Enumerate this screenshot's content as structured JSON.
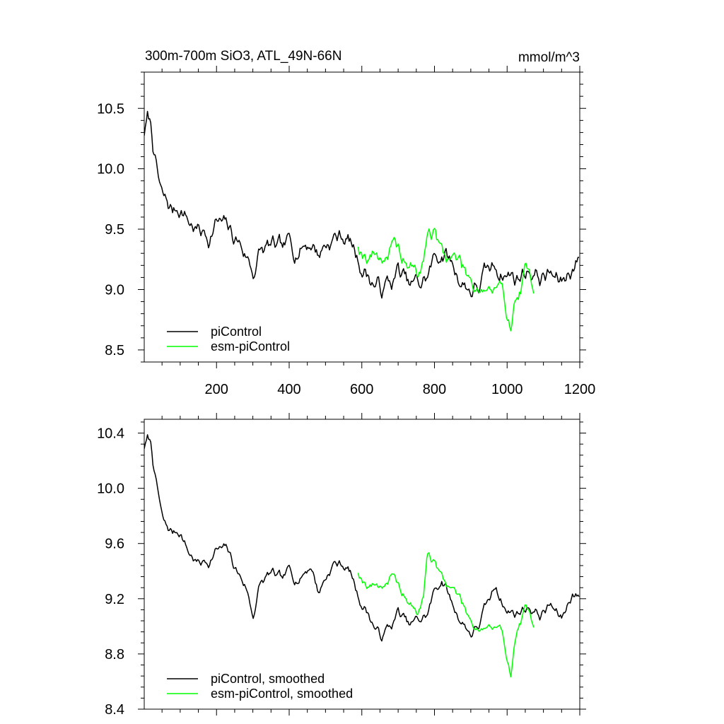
{
  "chart_data": [
    {
      "type": "line",
      "title": "300m-700m SiO3, ATL_49N-66N",
      "units": "mmol/m^3",
      "xlim": [
        1,
        1200
      ],
      "ylim": [
        8.4,
        10.8
      ],
      "xticks": [
        200,
        400,
        600,
        800,
        1000,
        1200
      ],
      "xtick_labels": [
        "200",
        "400",
        "600",
        "800",
        "1000",
        "1200"
      ],
      "yticks": [
        8.5,
        9.0,
        9.5,
        10.0,
        10.5
      ],
      "ytick_labels": [
        "8.5",
        "9.0",
        "9.5",
        "10.0",
        "10.5"
      ],
      "legend_position": "bottom-left",
      "series": [
        {
          "name": "piControl",
          "color": "#000000",
          "noise": 0.1,
          "seed": 7,
          "x": [
            1,
            10,
            20,
            30,
            40,
            50,
            60,
            80,
            100,
            120,
            150,
            180,
            200,
            230,
            260,
            280,
            300,
            320,
            350,
            380,
            400,
            430,
            460,
            480,
            500,
            520,
            550,
            570,
            590,
            620,
            650,
            680,
            700,
            730,
            760,
            780,
            800,
            820,
            850,
            880,
            900,
            920,
            950,
            970,
            1000,
            1030,
            1060,
            1090,
            1120,
            1150,
            1180,
            1200
          ],
          "y": [
            10.3,
            10.4,
            10.35,
            10.1,
            9.9,
            9.75,
            9.72,
            9.65,
            9.7,
            9.58,
            9.48,
            9.45,
            9.55,
            9.5,
            9.4,
            9.3,
            9.15,
            9.3,
            9.35,
            9.3,
            9.38,
            9.35,
            9.4,
            9.3,
            9.38,
            9.42,
            9.45,
            9.38,
            9.25,
            9.1,
            9.0,
            9.05,
            9.15,
            9.02,
            9.05,
            9.1,
            9.25,
            9.32,
            9.2,
            9.05,
            9.0,
            9.02,
            9.15,
            9.2,
            9.12,
            9.1,
            9.18,
            9.1,
            9.12,
            9.05,
            9.2,
            9.25
          ]
        },
        {
          "name": "esm-piControl",
          "color": "#00ff00",
          "noise": 0.1,
          "seed": 19,
          "x": [
            590,
            610,
            630,
            650,
            680,
            700,
            720,
            750,
            770,
            780,
            800,
            820,
            850,
            870,
            900,
            920,
            950,
            980,
            1000,
            1010,
            1030,
            1050,
            1075
          ],
          "y": [
            9.38,
            9.3,
            9.3,
            9.28,
            9.32,
            9.3,
            9.25,
            9.12,
            9.2,
            9.5,
            9.45,
            9.3,
            9.28,
            9.22,
            9.1,
            9.05,
            9.0,
            8.95,
            8.85,
            8.75,
            8.95,
            9.1,
            9.05
          ]
        }
      ]
    },
    {
      "type": "line",
      "xlim": [
        1,
        1200
      ],
      "ylim": [
        8.4,
        10.5
      ],
      "xticks": [
        200,
        400,
        600,
        800,
        1000,
        1200
      ],
      "yticks": [
        8.4,
        8.8,
        9.2,
        9.6,
        10.0,
        10.4
      ],
      "ytick_labels": [
        "8.4",
        "8.8",
        "9.2",
        "9.6",
        "10.0",
        "10.4"
      ],
      "legend_position": "bottom-left",
      "series": [
        {
          "name": "piControl, smoothed",
          "color": "#000000",
          "noise": 0.05,
          "seed": 7,
          "x": [
            1,
            10,
            20,
            30,
            40,
            50,
            60,
            80,
            100,
            120,
            150,
            180,
            200,
            230,
            260,
            280,
            300,
            320,
            350,
            380,
            400,
            430,
            460,
            480,
            500,
            520,
            550,
            570,
            590,
            620,
            650,
            680,
            700,
            730,
            760,
            780,
            800,
            820,
            850,
            880,
            900,
            920,
            950,
            970,
            1000,
            1030,
            1060,
            1090,
            1120,
            1150,
            1180,
            1200
          ],
          "y": [
            10.3,
            10.35,
            10.32,
            10.1,
            9.95,
            9.78,
            9.72,
            9.68,
            9.7,
            9.55,
            9.45,
            9.48,
            9.55,
            9.55,
            9.38,
            9.3,
            9.08,
            9.3,
            9.38,
            9.32,
            9.4,
            9.35,
            9.45,
            9.25,
            9.35,
            9.45,
            9.45,
            9.38,
            9.22,
            9.08,
            8.92,
            9.0,
            9.1,
            9.0,
            9.05,
            9.08,
            9.25,
            9.35,
            9.15,
            9.02,
            8.95,
            9.0,
            9.18,
            9.3,
            9.1,
            9.1,
            9.15,
            9.08,
            9.15,
            9.05,
            9.25,
            9.2
          ]
        },
        {
          "name": "esm-piControl, smoothed",
          "color": "#00ff00",
          "noise": 0.05,
          "seed": 19,
          "x": [
            590,
            610,
            630,
            650,
            680,
            700,
            720,
            750,
            770,
            780,
            800,
            820,
            850,
            870,
            900,
            920,
            950,
            980,
            1000,
            1010,
            1030,
            1050,
            1075
          ],
          "y": [
            9.4,
            9.32,
            9.3,
            9.3,
            9.35,
            9.28,
            9.22,
            9.08,
            9.2,
            9.55,
            9.45,
            9.35,
            9.28,
            9.2,
            9.05,
            9.0,
            9.0,
            8.95,
            8.8,
            8.68,
            9.0,
            9.1,
            9.03
          ]
        }
      ]
    }
  ]
}
